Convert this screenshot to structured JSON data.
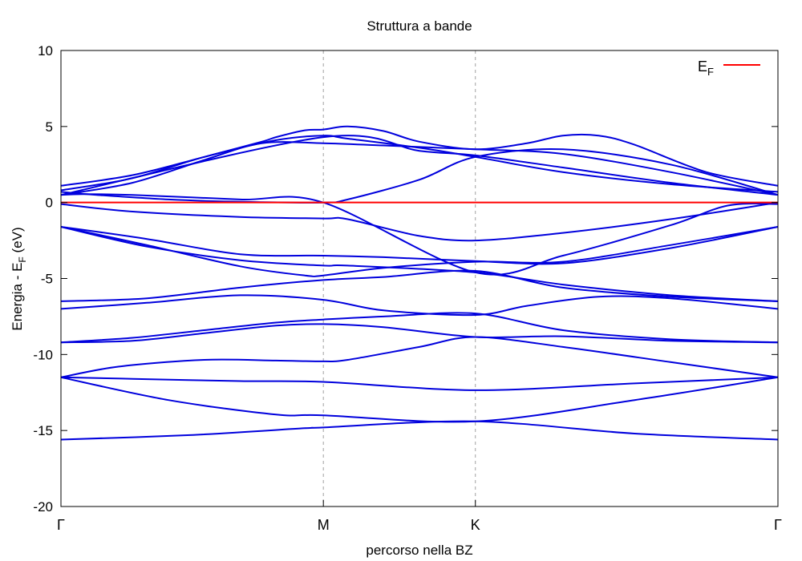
{
  "chart_data": {
    "type": "line",
    "title": "Struttura a bande",
    "xlabel": "percorso nella BZ",
    "ylabel": "Energia - E",
    "ylabel_sub": "F",
    "ylabel_suffix": " (eV)",
    "ylim": [
      -20,
      10
    ],
    "yticks": [
      10,
      5,
      0,
      -5,
      -10,
      -15,
      -20
    ],
    "xlim": [
      0,
      1
    ],
    "xticks": [
      {
        "label": "Γ",
        "x": 0
      },
      {
        "label": "M",
        "x": 0.366
      },
      {
        "label": "K",
        "x": 0.578
      },
      {
        "label": "Γ",
        "x": 1
      }
    ],
    "symmetry_lines": [
      0.366,
      0.578
    ],
    "grid": false,
    "legend": {
      "position": "top-right",
      "entries": [
        {
          "label": "E",
          "sub": "F",
          "color": "#ff0000"
        }
      ]
    },
    "fermi_level": {
      "y": 0,
      "color": "#ff0000"
    },
    "band_color": "#0000dd",
    "bands": [
      {
        "x": [
          0,
          0.18,
          0.34,
          0.366,
          0.578,
          0.8,
          1.0
        ],
        "y": [
          -15.6,
          -15.3,
          -14.85,
          -14.8,
          -14.4,
          -15.2,
          -15.6
        ]
      },
      {
        "x": [
          0,
          0.15,
          0.3,
          0.366,
          0.578,
          0.8,
          1.0
        ],
        "y": [
          -11.5,
          -13.0,
          -13.95,
          -14.0,
          -14.4,
          -13.0,
          -11.5
        ]
      },
      {
        "x": [
          0,
          0.1,
          0.25,
          0.366,
          0.578,
          0.8,
          1.0
        ],
        "y": [
          -11.5,
          -11.6,
          -11.75,
          -11.8,
          -12.35,
          -11.9,
          -11.5
        ]
      },
      {
        "x": [
          0,
          0.08,
          0.2,
          0.3,
          0.366,
          0.4,
          0.5,
          0.578,
          0.7,
          0.85,
          1.0
        ],
        "y": [
          -11.5,
          -10.8,
          -10.35,
          -10.4,
          -10.45,
          -10.35,
          -9.5,
          -8.85,
          -9.5,
          -10.5,
          -11.5
        ]
      },
      {
        "x": [
          0,
          0.1,
          0.2,
          0.3,
          0.366,
          0.45,
          0.578,
          0.7,
          0.85,
          1.0
        ],
        "y": [
          -9.2,
          -9.1,
          -8.6,
          -8.1,
          -8.0,
          -8.2,
          -8.85,
          -8.8,
          -9.1,
          -9.2
        ]
      },
      {
        "x": [
          0,
          0.1,
          0.2,
          0.3,
          0.366,
          0.45,
          0.578,
          0.7,
          0.85,
          1.0
        ],
        "y": [
          -9.2,
          -8.9,
          -8.4,
          -7.9,
          -7.7,
          -7.5,
          -7.3,
          -8.4,
          -9.0,
          -9.2
        ]
      },
      {
        "x": [
          0,
          0.12,
          0.25,
          0.366,
          0.45,
          0.578,
          0.65,
          0.75,
          0.85,
          1.0
        ],
        "y": [
          -7.0,
          -6.6,
          -6.1,
          -6.4,
          -7.1,
          -7.4,
          -6.8,
          -6.2,
          -6.3,
          -7.0
        ]
      },
      {
        "x": [
          0,
          0.12,
          0.25,
          0.366,
          0.45,
          0.578,
          0.7,
          0.85,
          1.0
        ],
        "y": [
          -6.5,
          -6.3,
          -5.6,
          -5.1,
          -4.9,
          -4.5,
          -5.6,
          -6.2,
          -6.5
        ]
      },
      {
        "x": [
          0,
          0.12,
          0.25,
          0.34,
          0.366,
          0.45,
          0.578,
          0.7,
          0.85,
          1.0
        ],
        "y": [
          -1.6,
          -2.8,
          -4.2,
          -4.8,
          -4.8,
          -4.3,
          -3.9,
          -3.9,
          -2.8,
          -1.6
        ]
      },
      {
        "x": [
          0,
          0.12,
          0.25,
          0.366,
          0.45,
          0.578,
          0.7,
          0.85,
          1.0
        ],
        "y": [
          -1.6,
          -2.4,
          -3.4,
          -3.5,
          -3.6,
          -3.85,
          -4.0,
          -3.0,
          -1.6
        ]
      },
      {
        "x": [
          0,
          0.12,
          0.25,
          0.366,
          0.4,
          0.578,
          0.7,
          0.85,
          1.0
        ],
        "y": [
          -1.6,
          -2.9,
          -3.8,
          -4.15,
          -4.15,
          -4.6,
          -5.4,
          -6.1,
          -6.5
        ]
      },
      {
        "x": [
          0,
          0.1,
          0.25,
          0.366,
          0.4,
          0.5,
          0.578,
          0.7,
          0.85,
          1.0
        ],
        "y": [
          -0.1,
          -0.6,
          -0.95,
          -1.05,
          -1.1,
          -2.2,
          -2.5,
          -2.0,
          -1.1,
          0.0
        ]
      },
      {
        "x": [
          0,
          0.03,
          0.1,
          0.25,
          0.366,
          0.578,
          0.7,
          0.85,
          0.93,
          1.0
        ],
        "y": [
          0.5,
          0.55,
          0.5,
          0.2,
          0.0,
          -4.6,
          -3.5,
          -1.5,
          -0.2,
          -0.1
        ]
      },
      {
        "x": [
          0,
          0.05,
          0.15,
          0.25,
          0.366,
          0.4,
          0.5,
          0.578,
          0.7,
          0.85,
          1.0
        ],
        "y": [
          0.7,
          0.5,
          0.2,
          0.05,
          0.0,
          0.2,
          1.5,
          3.0,
          3.5,
          2.5,
          0.5
        ]
      },
      {
        "x": [
          0,
          0.1,
          0.2,
          0.28,
          0.3,
          0.34,
          0.366,
          0.4,
          0.45,
          0.5,
          0.578,
          0.65,
          0.7,
          0.75,
          0.8,
          0.9,
          1.0
        ],
        "y": [
          1.1,
          1.8,
          3.0,
          4.0,
          4.3,
          4.75,
          4.8,
          5.0,
          4.7,
          4.0,
          3.5,
          3.9,
          4.4,
          4.4,
          3.8,
          2.0,
          1.1
        ]
      },
      {
        "x": [
          0,
          0.1,
          0.2,
          0.3,
          0.366,
          0.4,
          0.5,
          0.578,
          0.7,
          0.85,
          1.0
        ],
        "y": [
          0.8,
          1.6,
          3.0,
          4.1,
          4.4,
          4.2,
          3.6,
          3.0,
          2.0,
          1.2,
          0.7
        ]
      },
      {
        "x": [
          0,
          0.1,
          0.2,
          0.28,
          0.366,
          0.45,
          0.578,
          0.7,
          0.85,
          1.0
        ],
        "y": [
          0.5,
          1.3,
          2.8,
          3.9,
          3.9,
          3.75,
          3.5,
          3.2,
          2.0,
          0.5
        ]
      },
      {
        "x": [
          0,
          0.366,
          0.5,
          0.578,
          0.7,
          0.85,
          1.0
        ],
        "y": [
          0.5,
          4.3,
          3.4,
          3.1,
          2.3,
          1.3,
          0.5
        ]
      }
    ]
  }
}
